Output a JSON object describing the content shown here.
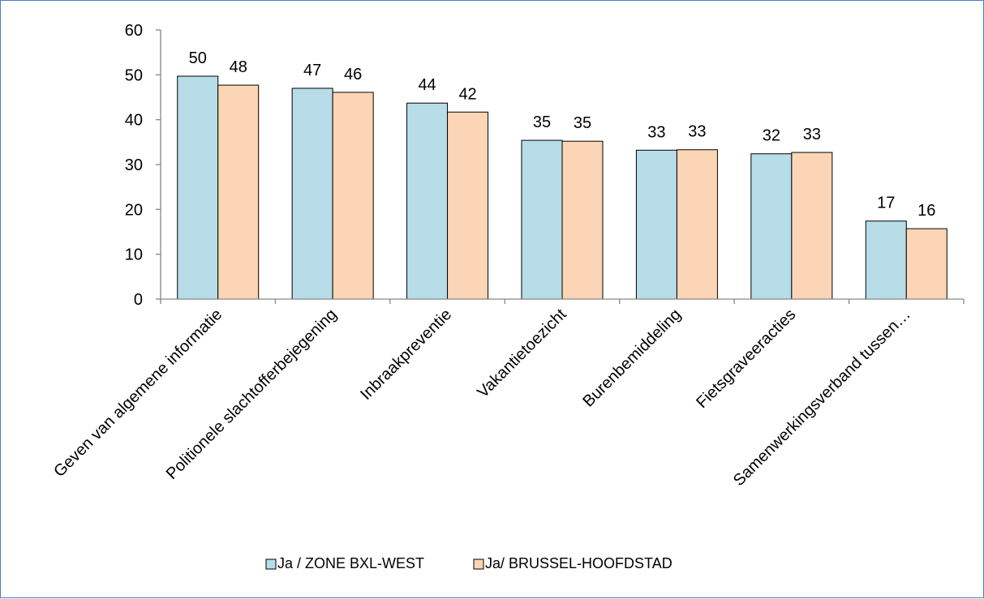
{
  "chart_data": {
    "type": "bar",
    "title": "",
    "xlabel": "",
    "ylabel": "",
    "ylim": [
      0,
      60
    ],
    "yticks": [
      0,
      10,
      20,
      30,
      40,
      50,
      60
    ],
    "grid": false,
    "legend_position": "bottom",
    "categories": [
      "Geven van algemene informatie",
      "Politionele slachtofferbejegening",
      "Inbraakpreventie",
      "Vakantietoezicht",
      "Burenbemiddeling",
      "Fietsgraveeracties",
      "Samenwerkingsverband tussen…"
    ],
    "series": [
      {
        "name": "Ja / ZONE BXL-WEST",
        "color": "#b7dde8",
        "values": [
          49.7,
          47,
          43.7,
          35.4,
          33.2,
          32.4,
          17.4
        ],
        "labels": [
          "50",
          "47",
          "44",
          "35",
          "33",
          "32",
          "17"
        ]
      },
      {
        "name": "Ja/ BRUSSEL-HOOFDSTAD",
        "color": "#fbd5b5",
        "values": [
          47.7,
          46.1,
          41.7,
          35.2,
          33.3,
          32.7,
          15.7
        ],
        "labels": [
          "48",
          "46",
          "42",
          "35",
          "33",
          "33",
          "16"
        ]
      }
    ]
  }
}
